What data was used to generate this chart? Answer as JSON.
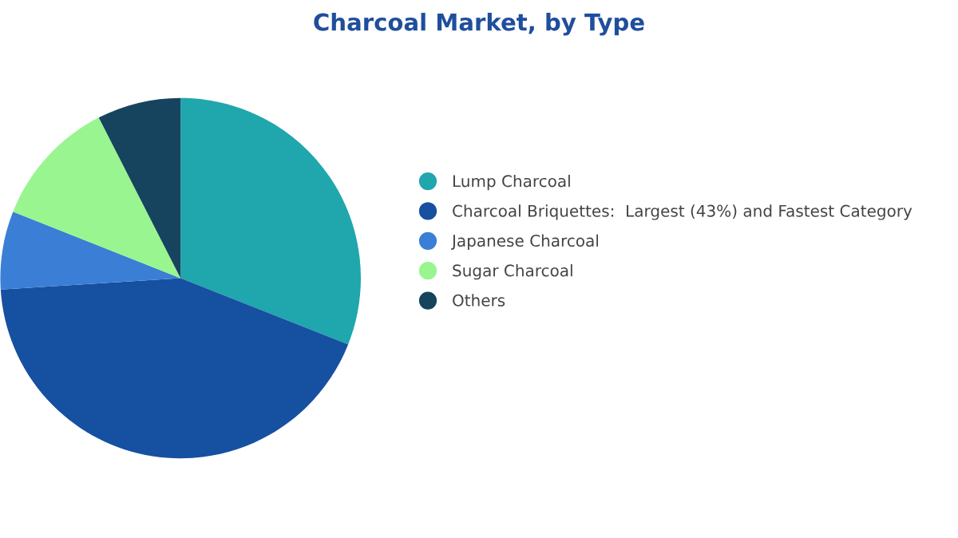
{
  "chart_data": {
    "type": "pie",
    "title": "Charcoal Market, by Type",
    "categories": [
      "Lump Charcoal",
      "Charcoal Briquettes:  Largest (43%) and Fastest Category",
      "Japanese Charcoal",
      "Sugar Charcoal",
      "Others"
    ],
    "values": [
      31,
      43,
      7,
      11.5,
      7.5
    ],
    "colors": [
      "#20a6ad",
      "#1650a0",
      "#3a7fd5",
      "#99f58f",
      "#16445e"
    ],
    "legend": "right"
  }
}
